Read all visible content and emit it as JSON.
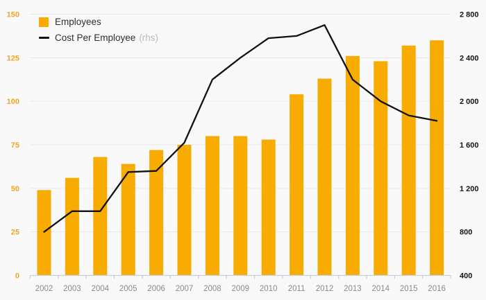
{
  "legend": {
    "employees": "Employees",
    "cost": "Cost Per Employee",
    "rhs": "(rhs)"
  },
  "colors": {
    "background": "#f9f9f9",
    "bar": "#f8ab00",
    "line": "#111111",
    "left_axis_labels": "#f2a521",
    "right_axis_labels": "#141414",
    "year_labels": "#8a8a8a",
    "gridline": "#e9e9e9",
    "axis_baseline": "#c6cfdf"
  },
  "chart_data": {
    "type": "bar",
    "subtype": "bar-line-combo",
    "title": "",
    "categories": [
      "2002",
      "2003",
      "2004",
      "2005",
      "2006",
      "2007",
      "2008",
      "2009",
      "2010",
      "2011",
      "2012",
      "2013",
      "2014",
      "2015",
      "2016"
    ],
    "series": [
      {
        "name": "Employees",
        "type": "bar",
        "axis": "left",
        "values": [
          49,
          56,
          68,
          64,
          72,
          75,
          80,
          80,
          78,
          104,
          113,
          126,
          123,
          132,
          135
        ]
      },
      {
        "name": "Cost Per Employee (rhs)",
        "type": "line",
        "axis": "right",
        "values": [
          800,
          990,
          990,
          1350,
          1360,
          1620,
          2200,
          2400,
          2580,
          2600,
          2700,
          2200,
          2000,
          1870,
          1820
        ]
      }
    ],
    "left_axis": {
      "min": 0,
      "max": 150,
      "step": 25,
      "tick_labels": [
        "0",
        "25",
        "50",
        "75",
        "100",
        "125",
        "150"
      ]
    },
    "right_axis": {
      "min": 400,
      "max": 2800,
      "step": 400,
      "tick_labels": [
        "400",
        "800",
        "1 200",
        "1 600",
        "2 000",
        "2 400",
        "2 800"
      ]
    },
    "grid": true,
    "legend_position": "top-left"
  }
}
